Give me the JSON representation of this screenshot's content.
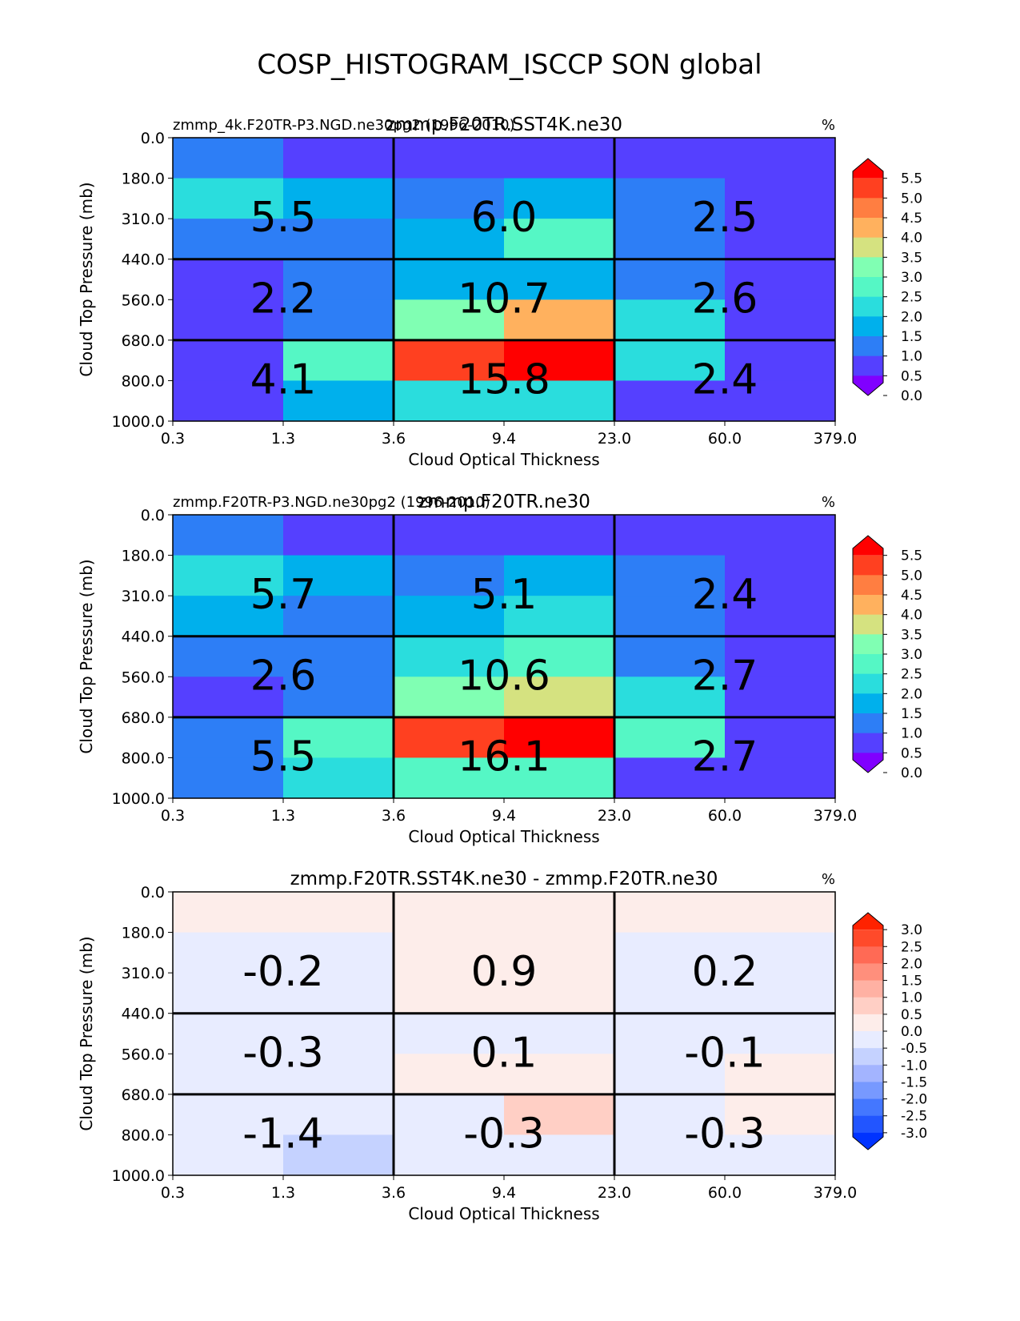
{
  "figure_title": "COSP_HISTOGRAM_ISCCP SON global",
  "palettes": {
    "rainbow": [
      "#8000ff",
      "#5540ff",
      "#2d7ef6",
      "#00b0ec",
      "#2adddd",
      "#55f7c5",
      "#80ffb3",
      "#d5e280",
      "#ffb15e",
      "#ff7e41",
      "#ff4020",
      "#ff0000"
    ],
    "diff": [
      "#0033ff",
      "#2255ff",
      "#4477ff",
      "#7799ff",
      "#a3b4ff",
      "#c5d2ff",
      "#e8ecff",
      "#fdedea",
      "#ffcfc5",
      "#ffb1a3",
      "#ff8f7c",
      "#ff6a55",
      "#ff4a2a",
      "#ff2200"
    ]
  },
  "chart_data": [
    {
      "type": "heatmap",
      "title_left": "zmmp_4k.F20TR-P3.NGD.ne30pg2 (1996-2010)",
      "title_center": "zmmp.F20TR.SST4K.ne30",
      "title_right": "%",
      "xlabel": "Cloud Optical Thickness",
      "ylabel": "Cloud Top Pressure (mb)",
      "xticks": [
        "0.3",
        "1.3",
        "3.6",
        "9.4",
        "23.0",
        "60.0",
        "379.0"
      ],
      "yticks": [
        "0.0",
        "180.0",
        "310.0",
        "440.0",
        "560.0",
        "680.0",
        "800.0",
        "1000.0"
      ],
      "colorbar_ticks": [
        "5.5",
        "5.0",
        "4.5",
        "4.0",
        "3.5",
        "3.0",
        "2.5",
        "2.0",
        "1.5",
        "1.0",
        "0.5",
        "0.0"
      ],
      "palette": "rainbow",
      "cell_colors": [
        [
          2,
          1,
          1,
          1,
          1,
          1
        ],
        [
          4,
          3,
          2,
          3,
          2,
          1
        ],
        [
          2,
          2,
          3,
          5,
          2,
          1
        ],
        [
          1,
          2,
          3,
          3,
          2,
          1
        ],
        [
          1,
          2,
          6,
          8,
          4,
          1
        ],
        [
          1,
          5,
          10,
          11,
          4,
          1
        ],
        [
          1,
          3,
          4,
          4,
          1,
          1
        ]
      ],
      "group_values": [
        [
          "5.5",
          "6.0",
          "2.5"
        ],
        [
          "2.2",
          "10.7",
          "2.6"
        ],
        [
          "4.1",
          "15.8",
          "2.4"
        ]
      ]
    },
    {
      "type": "heatmap",
      "title_left": "zmmp.F20TR-P3.NGD.ne30pg2 (1996-2010)",
      "title_center": "zmmp.F20TR.ne30",
      "title_right": "%",
      "xlabel": "Cloud Optical Thickness",
      "ylabel": "Cloud Top Pressure (mb)",
      "xticks": [
        "0.3",
        "1.3",
        "3.6",
        "9.4",
        "23.0",
        "60.0",
        "379.0"
      ],
      "yticks": [
        "0.0",
        "180.0",
        "310.0",
        "440.0",
        "560.0",
        "680.0",
        "800.0",
        "1000.0"
      ],
      "colorbar_ticks": [
        "5.5",
        "5.0",
        "4.5",
        "4.0",
        "3.5",
        "3.0",
        "2.5",
        "2.0",
        "1.5",
        "1.0",
        "0.5",
        "0.0"
      ],
      "palette": "rainbow",
      "cell_colors": [
        [
          2,
          1,
          1,
          1,
          1,
          1
        ],
        [
          4,
          3,
          2,
          3,
          2,
          1
        ],
        [
          3,
          2,
          3,
          4,
          2,
          1
        ],
        [
          2,
          2,
          4,
          5,
          2,
          1
        ],
        [
          1,
          2,
          6,
          7,
          4,
          1
        ],
        [
          2,
          5,
          10,
          11,
          5,
          1
        ],
        [
          2,
          4,
          5,
          5,
          1,
          1
        ]
      ],
      "group_values": [
        [
          "5.7",
          "5.1",
          "2.4"
        ],
        [
          "2.6",
          "10.6",
          "2.7"
        ],
        [
          "5.5",
          "16.1",
          "2.7"
        ]
      ]
    },
    {
      "type": "heatmap",
      "title_left": "",
      "title_center": "zmmp.F20TR.SST4K.ne30 - zmmp.F20TR.ne30",
      "title_right": "%",
      "xlabel": "Cloud Optical Thickness",
      "ylabel": "Cloud Top Pressure (mb)",
      "xticks": [
        "0.3",
        "1.3",
        "3.6",
        "9.4",
        "23.0",
        "60.0",
        "379.0"
      ],
      "yticks": [
        "0.0",
        "180.0",
        "310.0",
        "440.0",
        "560.0",
        "680.0",
        "800.0",
        "1000.0"
      ],
      "colorbar_ticks": [
        "3.0",
        "2.5",
        "2.0",
        "1.5",
        "1.0",
        "0.5",
        "0.0",
        "-0.5",
        "-1.0",
        "-1.5",
        "-2.0",
        "-2.5",
        "-3.0"
      ],
      "palette": "diff",
      "cell_colors": [
        [
          7,
          7,
          7,
          7,
          7,
          7
        ],
        [
          6,
          6,
          7,
          7,
          6,
          6
        ],
        [
          6,
          6,
          7,
          7,
          6,
          6
        ],
        [
          6,
          6,
          6,
          6,
          6,
          6
        ],
        [
          6,
          6,
          7,
          7,
          6,
          7
        ],
        [
          6,
          6,
          6,
          8,
          6,
          7
        ],
        [
          6,
          5,
          6,
          6,
          6,
          6
        ]
      ],
      "group_values": [
        [
          "-0.2",
          "0.9",
          "0.2"
        ],
        [
          "-0.3",
          "0.1",
          "-0.1"
        ],
        [
          "-1.4",
          "-0.3",
          "-0.3"
        ]
      ]
    }
  ]
}
